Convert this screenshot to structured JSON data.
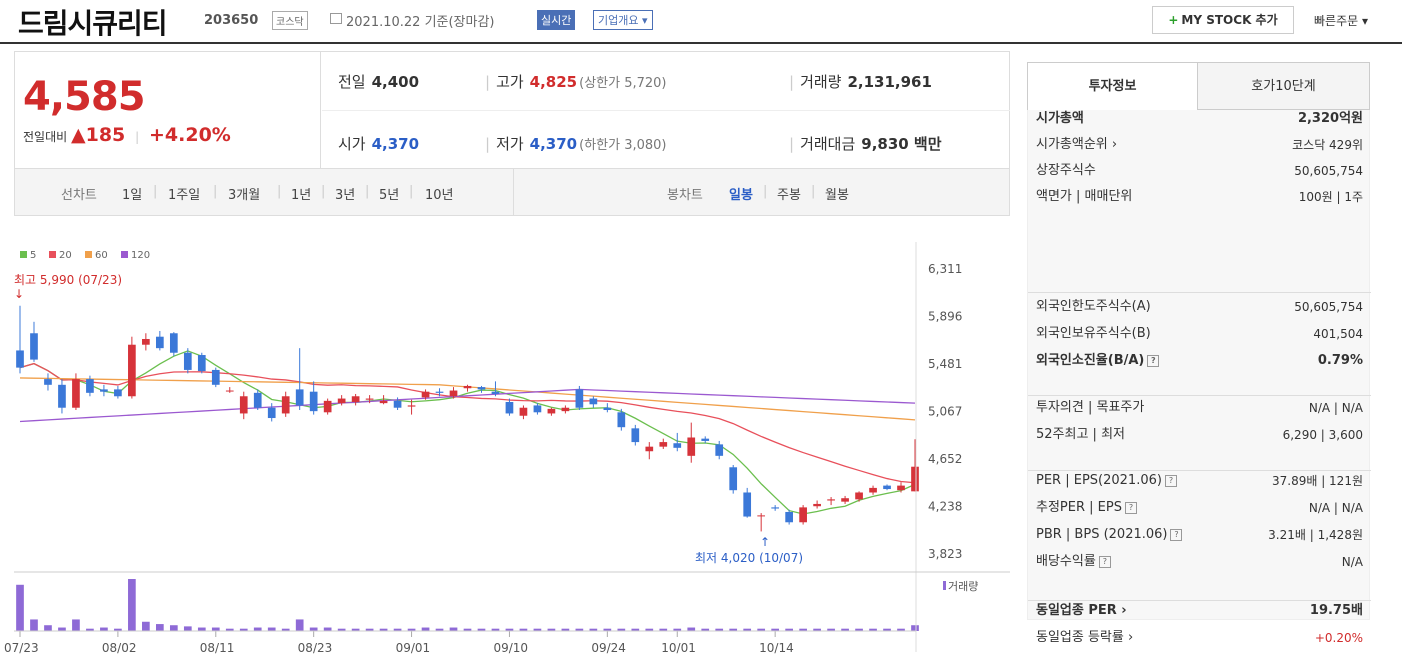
{
  "header": {
    "title": "드림시큐리티",
    "code": "203650",
    "market": "코스닥",
    "date": "2021.10.22 기준(장마감)",
    "live_label": "실시간",
    "corp_label": "기업개요 ▾",
    "mystock_label": "MY STOCK 추가",
    "quick_order": "빠른주문 ▾"
  },
  "price": {
    "current": "4,585",
    "change_label": "전일대비",
    "change": "▲185",
    "change_pct": "+4.20%"
  },
  "stats": {
    "prev_label": "전일",
    "prev": "4,400",
    "high_label": "고가",
    "high": "4,825",
    "upper_limit": "(상한가 5,720)",
    "volume_label": "거래량",
    "volume": "2,131,961",
    "open_label": "시가",
    "open": "4,370",
    "low_label": "저가",
    "low": "4,370",
    "lower_limit": "(하한가 3,080)",
    "amount_label": "거래대금",
    "amount": "9,830 백만"
  },
  "tabs": {
    "line_label": "선차트",
    "line_periods": [
      "1일",
      "1주일",
      "3개월",
      "1년",
      "3년",
      "5년",
      "10년"
    ],
    "candle_label": "봉차트",
    "candle_periods": [
      "일봉",
      "주봉",
      "월봉"
    ],
    "active_candle": "일봉"
  },
  "chart_data": {
    "type": "candlestick",
    "legend": [
      {
        "name": "5",
        "color": "#6bbf4e"
      },
      {
        "name": "20",
        "color": "#e8505b"
      },
      {
        "name": "60",
        "color": "#f0a04b"
      },
      {
        "name": "120",
        "color": "#9b59d0"
      }
    ],
    "y_ticks": [
      "6,311",
      "5,896",
      "5,481",
      "5,067",
      "4,652",
      "4,238",
      "3,823"
    ],
    "ylim": [
      3823,
      6311
    ],
    "x_ticks": [
      {
        "label": "07/23",
        "index": 0
      },
      {
        "label": "08/02",
        "index": 7
      },
      {
        "label": "08/11",
        "index": 14
      },
      {
        "label": "08/23",
        "index": 21
      },
      {
        "label": "09/01",
        "index": 28
      },
      {
        "label": "09/10",
        "index": 35
      },
      {
        "label": "09/24",
        "index": 42
      },
      {
        "label": "10/01",
        "index": 47
      },
      {
        "label": "10/14",
        "index": 54
      }
    ],
    "high_annotation": "최고 5,990 (07/23)",
    "low_annotation": "최저 4,020 (10/07)",
    "volume_label": "거래량",
    "candles": [
      [
        5600,
        5990,
        5400,
        5450
      ],
      [
        5750,
        5850,
        5500,
        5520
      ],
      [
        5350,
        5400,
        5250,
        5300
      ],
      [
        5300,
        5350,
        5050,
        5100
      ],
      [
        5100,
        5400,
        5080,
        5350
      ],
      [
        5350,
        5380,
        5200,
        5230
      ],
      [
        5260,
        5300,
        5200,
        5240
      ],
      [
        5260,
        5290,
        5180,
        5200
      ],
      [
        5200,
        5720,
        5180,
        5650
      ],
      [
        5650,
        5750,
        5600,
        5700
      ],
      [
        5720,
        5770,
        5600,
        5620
      ],
      [
        5750,
        5760,
        5550,
        5580
      ],
      [
        5580,
        5620,
        5400,
        5430
      ],
      [
        5560,
        5580,
        5400,
        5420
      ],
      [
        5430,
        5450,
        5280,
        5300
      ],
      [
        5250,
        5280,
        5230,
        5250
      ],
      [
        5050,
        5240,
        5000,
        5200
      ],
      [
        5230,
        5260,
        5080,
        5100
      ],
      [
        5100,
        5140,
        4980,
        5010
      ],
      [
        5050,
        5240,
        5020,
        5200
      ],
      [
        5260,
        5620,
        5080,
        5120
      ],
      [
        5240,
        5330,
        5040,
        5070
      ],
      [
        5060,
        5180,
        5040,
        5160
      ],
      [
        5140,
        5210,
        5120,
        5180
      ],
      [
        5150,
        5220,
        5120,
        5200
      ],
      [
        5170,
        5210,
        5140,
        5180
      ],
      [
        5140,
        5210,
        5130,
        5160
      ],
      [
        5160,
        5190,
        5080,
        5100
      ],
      [
        5110,
        5170,
        5040,
        5120
      ],
      [
        5190,
        5260,
        5170,
        5240
      ],
      [
        5240,
        5270,
        5200,
        5230
      ],
      [
        5200,
        5280,
        5180,
        5250
      ],
      [
        5270,
        5300,
        5240,
        5290
      ],
      [
        5280,
        5290,
        5230,
        5260
      ],
      [
        5240,
        5330,
        5200,
        5220
      ],
      [
        5150,
        5180,
        5030,
        5050
      ],
      [
        5030,
        5120,
        5000,
        5100
      ],
      [
        5120,
        5140,
        5040,
        5060
      ],
      [
        5050,
        5100,
        5030,
        5090
      ],
      [
        5070,
        5120,
        5050,
        5100
      ],
      [
        5260,
        5290,
        5080,
        5100
      ],
      [
        5180,
        5200,
        5100,
        5130
      ],
      [
        5100,
        5140,
        5060,
        5080
      ],
      [
        5060,
        5090,
        4900,
        4930
      ],
      [
        4920,
        4950,
        4770,
        4800
      ],
      [
        4720,
        4800,
        4650,
        4760
      ],
      [
        4760,
        4830,
        4740,
        4800
      ],
      [
        4790,
        4880,
        4720,
        4750
      ],
      [
        4680,
        4970,
        4620,
        4840
      ],
      [
        4830,
        4850,
        4790,
        4810
      ],
      [
        4780,
        4810,
        4650,
        4680
      ],
      [
        4580,
        4600,
        4350,
        4380
      ],
      [
        4360,
        4400,
        4140,
        4150
      ],
      [
        4160,
        4180,
        4020,
        4160
      ],
      [
        4230,
        4250,
        4200,
        4220
      ],
      [
        4190,
        4210,
        4080,
        4100
      ],
      [
        4100,
        4250,
        4080,
        4230
      ],
      [
        4240,
        4290,
        4220,
        4260
      ],
      [
        4290,
        4320,
        4250,
        4300
      ],
      [
        4280,
        4330,
        4260,
        4310
      ],
      [
        4300,
        4370,
        4280,
        4360
      ],
      [
        4360,
        4420,
        4340,
        4400
      ],
      [
        4420,
        4430,
        4380,
        4390
      ],
      [
        4380,
        4450,
        4360,
        4420
      ],
      [
        4370,
        4825,
        4370,
        4585
      ]
    ],
    "volumes": [
      40,
      10,
      5,
      3,
      10,
      2,
      3,
      2,
      45,
      8,
      6,
      5,
      4,
      3,
      3,
      2,
      2,
      3,
      3,
      2,
      10,
      3,
      3,
      2,
      2,
      2,
      2,
      2,
      2,
      3,
      2,
      3,
      2,
      2,
      2,
      2,
      2,
      2,
      2,
      2,
      2,
      2,
      2,
      2,
      2,
      2,
      2,
      2,
      3,
      2,
      2,
      2,
      2,
      2,
      2,
      2,
      2,
      2,
      2,
      2,
      2,
      2,
      2,
      2,
      5
    ]
  },
  "side": {
    "tab_active": "투자정보",
    "tab_other": "호가10단계",
    "rows1": [
      {
        "k": "시가총액",
        "v": "2,320억원",
        "bold": true
      },
      {
        "k": "시가총액순위 ›",
        "v": "코스닥 429위"
      },
      {
        "k": "상장주식수",
        "v": "50,605,754"
      },
      {
        "k": "액면가 | 매매단위",
        "v": "100원 | 1주"
      }
    ],
    "rows2": [
      {
        "k": "외국인한도주식수(A)",
        "v": "50,605,754"
      },
      {
        "k": "외국인보유주식수(B)",
        "v": "401,504"
      },
      {
        "k": "외국인소진율(B/A)",
        "v": "0.79%",
        "bold": true,
        "q": true
      }
    ],
    "rows3": [
      {
        "k": "투자의견 | 목표주가",
        "v": "N/A | N/A"
      },
      {
        "k": "52주최고 | 최저",
        "v": "6,290 | 3,600"
      }
    ],
    "rows4": [
      {
        "k": "PER | EPS(2021.06)",
        "v": "37.89배 | 121원",
        "q": true
      },
      {
        "k": "추정PER | EPS",
        "v": "N/A | N/A",
        "q": true
      },
      {
        "k": "PBR | BPS (2021.06)",
        "v": "3.21배 | 1,428원",
        "q": true
      },
      {
        "k": "배당수익률",
        "v": "N/A",
        "q": true
      }
    ],
    "rows5": [
      {
        "k": "동일업종 PER ›",
        "v": "19.75배",
        "bold": true
      },
      {
        "k": "동일업종 등락률 ›",
        "v": "+0.20%",
        "red": true
      }
    ]
  }
}
